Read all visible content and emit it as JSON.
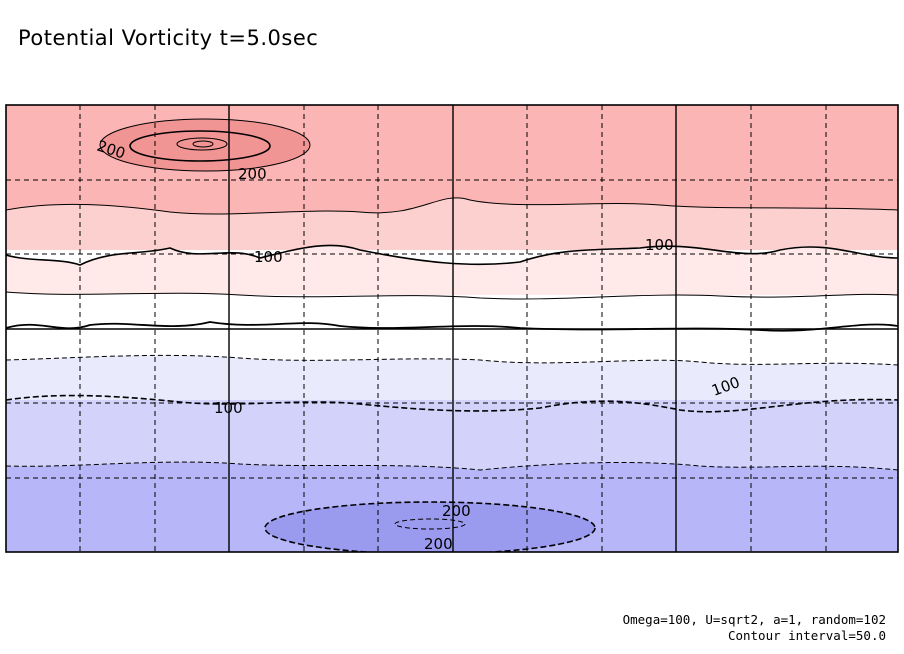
{
  "chart_data": {
    "type": "contour",
    "title": "Potential Vorticity t=5.0sec",
    "parameters_note": "Omega=100, U=sqrt2, a=1, random=102",
    "contour_interval_note": "Contour interval=50.0",
    "contour_interval": 50.0,
    "positive_contours_solid": true,
    "negative_contours_dashed": true,
    "color_scale": {
      "positive": "#f4a6a6",
      "zero": "#ffffff",
      "negative": "#9a9aef"
    },
    "bands": [
      {
        "range": "above 200",
        "color": "#f19494"
      },
      {
        "range": "150 to 200",
        "color": "#fbb5b5"
      },
      {
        "range": "100 to 150",
        "color": "#fdd0d0"
      },
      {
        "range": "50 to 100",
        "color": "#ffe9e9"
      },
      {
        "range": "0 to 50",
        "color": "#ffffff"
      },
      {
        "range": "-50 to 0",
        "color": "#ffffff"
      },
      {
        "range": "-100 to -50",
        "color": "#eaeafd"
      },
      {
        "range": "-150 to -100",
        "color": "#d2d2fb"
      },
      {
        "range": "-200 to -150",
        "color": "#b6b6f8"
      },
      {
        "range": "below -200",
        "color": "#9a9aef"
      }
    ],
    "contour_labels": [
      "200",
      "200",
      "100",
      "100",
      "100",
      "100",
      "200",
      "200"
    ],
    "grid": true
  }
}
